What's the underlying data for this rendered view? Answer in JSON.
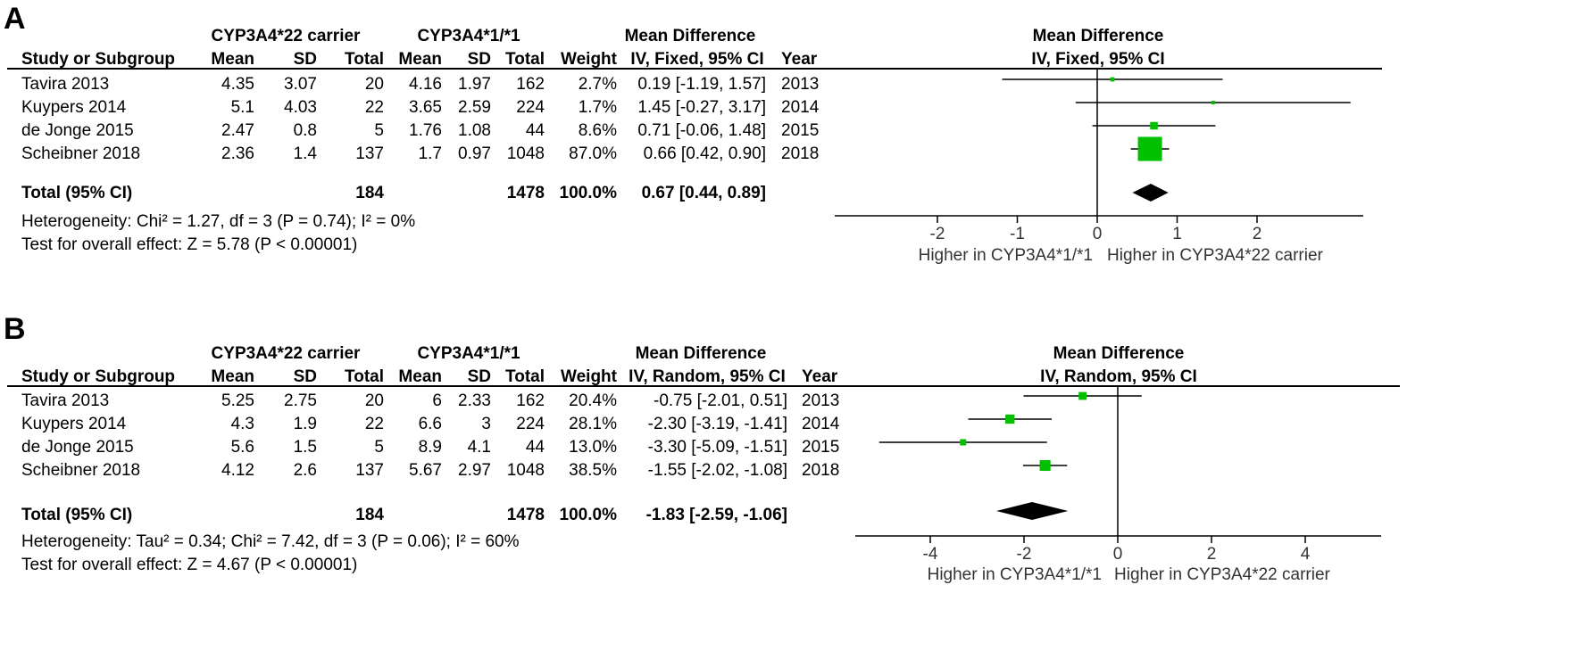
{
  "panels": [
    {
      "letter": "A",
      "group1": "CYP3A4*22 carrier",
      "group2": "CYP3A4*1/*1",
      "md_header": "Mean Difference",
      "md_method": "IV, Fixed, 95% CI",
      "columns": {
        "study": "Study or Subgroup",
        "mean": "Mean",
        "sd": "SD",
        "total": "Total",
        "weight": "Weight",
        "year": "Year"
      },
      "rows": [
        {
          "study": "Tavira 2013",
          "m1": "4.35",
          "sd1": "3.07",
          "n1": "20",
          "m2": "4.16",
          "sd2": "1.97",
          "n2": "162",
          "weight": "2.7%",
          "ci": "0.19 [-1.19, 1.57]",
          "year": "2013"
        },
        {
          "study": "Kuypers 2014",
          "m1": "5.1",
          "sd1": "4.03",
          "n1": "22",
          "m2": "3.65",
          "sd2": "2.59",
          "n2": "224",
          "weight": "1.7%",
          "ci": "1.45 [-0.27, 3.17]",
          "year": "2014"
        },
        {
          "study": "de Jonge 2015",
          "m1": "2.47",
          "sd1": "0.8",
          "n1": "5",
          "m2": "1.76",
          "sd2": "1.08",
          "n2": "44",
          "weight": "8.6%",
          "ci": "0.71 [-0.06, 1.48]",
          "year": "2015"
        },
        {
          "study": "Scheibner 2018",
          "m1": "2.36",
          "sd1": "1.4",
          "n1": "137",
          "m2": "1.7",
          "sd2": "0.97",
          "n2": "1048",
          "weight": "87.0%",
          "ci": "0.66 [0.42, 0.90]",
          "year": "2018"
        }
      ],
      "total": {
        "label": "Total (95% CI)",
        "n1": "184",
        "n2": "1478",
        "weight": "100.0%",
        "ci": "0.67 [0.44, 0.89]"
      },
      "heterogeneity": "Heterogeneity: Chi² = 1.27, df = 3 (P = 0.74); I² = 0%",
      "overall": "Test for overall effect: Z = 5.78 (P < 0.00001)",
      "favours_left": "Higher in CYP3A4*1/*1",
      "favours_right": "Higher in CYP3A4*22 carrier"
    },
    {
      "letter": "B",
      "group1": "CYP3A4*22 carrier",
      "group2": "CYP3A4*1/*1",
      "md_header": "Mean Difference",
      "md_method": "IV, Random, 95% CI",
      "columns": {
        "study": "Study or Subgroup",
        "mean": "Mean",
        "sd": "SD",
        "total": "Total",
        "weight": "Weight",
        "year": "Year"
      },
      "rows": [
        {
          "study": "Tavira 2013",
          "m1": "5.25",
          "sd1": "2.75",
          "n1": "20",
          "m2": "6",
          "sd2": "2.33",
          "n2": "162",
          "weight": "20.4%",
          "ci": "-0.75 [-2.01, 0.51]",
          "year": "2013"
        },
        {
          "study": "Kuypers 2014",
          "m1": "4.3",
          "sd1": "1.9",
          "n1": "22",
          "m2": "6.6",
          "sd2": "3",
          "n2": "224",
          "weight": "28.1%",
          "ci": "-2.30 [-3.19, -1.41]",
          "year": "2014"
        },
        {
          "study": "de Jonge 2015",
          "m1": "5.6",
          "sd1": "1.5",
          "n1": "5",
          "m2": "8.9",
          "sd2": "4.1",
          "n2": "44",
          "weight": "13.0%",
          "ci": "-3.30 [-5.09, -1.51]",
          "year": "2015"
        },
        {
          "study": "Scheibner 2018",
          "m1": "4.12",
          "sd1": "2.6",
          "n1": "137",
          "m2": "5.67",
          "sd2": "2.97",
          "n2": "1048",
          "weight": "38.5%",
          "ci": "-1.55 [-2.02, -1.08]",
          "year": "2018"
        }
      ],
      "total": {
        "label": "Total (95% CI)",
        "n1": "184",
        "n2": "1478",
        "weight": "100.0%",
        "ci": "-1.83 [-2.59, -1.06]"
      },
      "heterogeneity": "Heterogeneity: Tau² = 0.34; Chi² = 7.42, df = 3 (P = 0.06); I² = 60%",
      "overall": "Test for overall effect: Z = 4.67 (P < 0.00001)",
      "favours_left": "Higher in CYP3A4*1/*1",
      "favours_right": "Higher in CYP3A4*22 carrier"
    }
  ],
  "chart_data": [
    {
      "type": "forest",
      "title": "Mean Difference",
      "xlabel": "IV, Fixed, 95% CI",
      "xlim": [
        -3,
        3.3
      ],
      "xticks": [
        -2,
        -1,
        0,
        1,
        2
      ],
      "marker_color": "#00c000",
      "studies": [
        {
          "name": "Tavira 2013",
          "md": 0.19,
          "lo": -1.19,
          "hi": 1.57,
          "weight": 2.7
        },
        {
          "name": "Kuypers 2014",
          "md": 1.45,
          "lo": -0.27,
          "hi": 3.17,
          "weight": 1.7
        },
        {
          "name": "de Jonge 2015",
          "md": 0.71,
          "lo": -0.06,
          "hi": 1.48,
          "weight": 8.6
        },
        {
          "name": "Scheibner 2018",
          "md": 0.66,
          "lo": 0.42,
          "hi": 0.9,
          "weight": 87.0
        }
      ],
      "pooled": {
        "md": 0.67,
        "lo": 0.44,
        "hi": 0.89
      }
    },
    {
      "type": "forest",
      "title": "Mean Difference",
      "xlabel": "IV, Random, 95% CI",
      "xlim": [
        -5.5,
        5.5
      ],
      "xticks": [
        -4,
        -2,
        0,
        2,
        4
      ],
      "marker_color": "#00c000",
      "studies": [
        {
          "name": "Tavira 2013",
          "md": -0.75,
          "lo": -2.01,
          "hi": 0.51,
          "weight": 20.4
        },
        {
          "name": "Kuypers 2014",
          "md": -2.3,
          "lo": -3.19,
          "hi": -1.41,
          "weight": 28.1
        },
        {
          "name": "de Jonge 2015",
          "md": -3.3,
          "lo": -5.09,
          "hi": -1.51,
          "weight": 13.0
        },
        {
          "name": "Scheibner 2018",
          "md": -1.55,
          "lo": -2.02,
          "hi": -1.08,
          "weight": 38.5
        }
      ],
      "pooled": {
        "md": -1.83,
        "lo": -2.59,
        "hi": -1.06
      }
    }
  ]
}
